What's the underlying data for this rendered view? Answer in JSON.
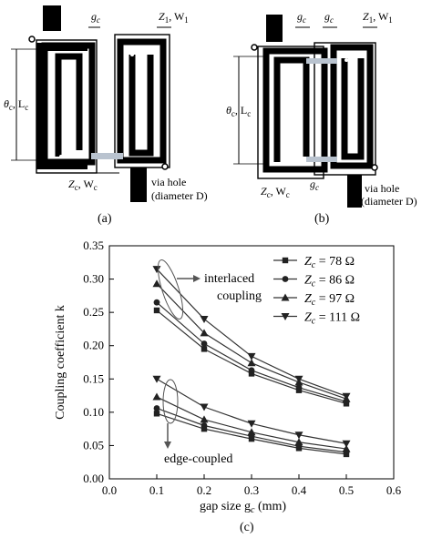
{
  "diagram_a": {
    "label_gap": "g",
    "label_gap_sub": "c",
    "label_zw": "Z",
    "label_zw_sub": "1",
    "label_zw_tail": ", W",
    "label_zw_sub2": "1",
    "label_theta": "θ",
    "label_theta_sub": "c",
    "label_theta_tail": ", L",
    "label_theta_sub2": "c",
    "label_zc": "Z",
    "label_zc_sub": "c",
    "label_zc_tail": ", W",
    "label_zc_sub2": "c",
    "label_via1": "via hole",
    "label_via2": "(diameter D)",
    "caption": "(a)"
  },
  "diagram_b": {
    "caption": "(b)"
  },
  "chart_caption": "(c)",
  "chart_data": {
    "type": "line",
    "x": [
      0.1,
      0.2,
      0.3,
      0.4,
      0.5
    ],
    "xlabel": "gap size g",
    "xlabel_sub": "c",
    "xlabel_tail": " (mm)",
    "ylabel": "Coupling coefficient k",
    "xlim": [
      0.0,
      0.6
    ],
    "ylim": [
      0.0,
      0.35
    ],
    "xticks": [
      "0.0",
      "0.1",
      "0.2",
      "0.3",
      "0.4",
      "0.5",
      "0.6"
    ],
    "yticks": [
      "0.00",
      "0.05",
      "0.10",
      "0.15",
      "0.20",
      "0.25",
      "0.30",
      "0.35"
    ],
    "grid": false,
    "legend_position": "top-right",
    "series": [
      {
        "name": "Zc = 78 Ω",
        "legend_value": "= 78 Ω",
        "marker": "square",
        "values": [
          0.253,
          0.195,
          0.158,
          0.133,
          0.113
        ]
      },
      {
        "name": "Zc = 86 Ω",
        "legend_value": "= 86 Ω",
        "marker": "circle",
        "values": [
          0.265,
          0.203,
          0.163,
          0.137,
          0.116
        ]
      },
      {
        "name": "Zc = 97 Ω",
        "legend_value": "= 97 Ω",
        "marker": "triangle-up",
        "values": [
          0.293,
          0.219,
          0.174,
          0.145,
          0.12
        ]
      },
      {
        "name": "Zc = 111 Ω",
        "legend_value": "= 111 Ω",
        "marker": "triangle-down",
        "values": [
          0.315,
          0.24,
          0.184,
          0.15,
          0.124
        ]
      },
      {
        "name": "Zc = 78 Ω",
        "legend_value": "= 78 Ω",
        "marker": "square",
        "values": [
          0.098,
          0.075,
          0.06,
          0.046,
          0.037
        ]
      },
      {
        "name": "Zc = 86 Ω",
        "legend_value": "= 86 Ω",
        "marker": "circle",
        "values": [
          0.106,
          0.08,
          0.064,
          0.049,
          0.04
        ]
      },
      {
        "name": "Zc = 97 Ω",
        "legend_value": "= 97 Ω",
        "marker": "triangle-up",
        "values": [
          0.123,
          0.089,
          0.07,
          0.055,
          0.045
        ]
      },
      {
        "name": "Zc = 111 Ω",
        "legend_value": "= 111 Ω",
        "marker": "triangle-down",
        "values": [
          0.15,
          0.108,
          0.083,
          0.066,
          0.053
        ]
      }
    ],
    "legend_var": "Z",
    "legend_var_sub": "c",
    "annotations": [
      {
        "text1": "interlaced",
        "text2": "coupling"
      },
      {
        "text1": "edge-coupled"
      }
    ]
  }
}
